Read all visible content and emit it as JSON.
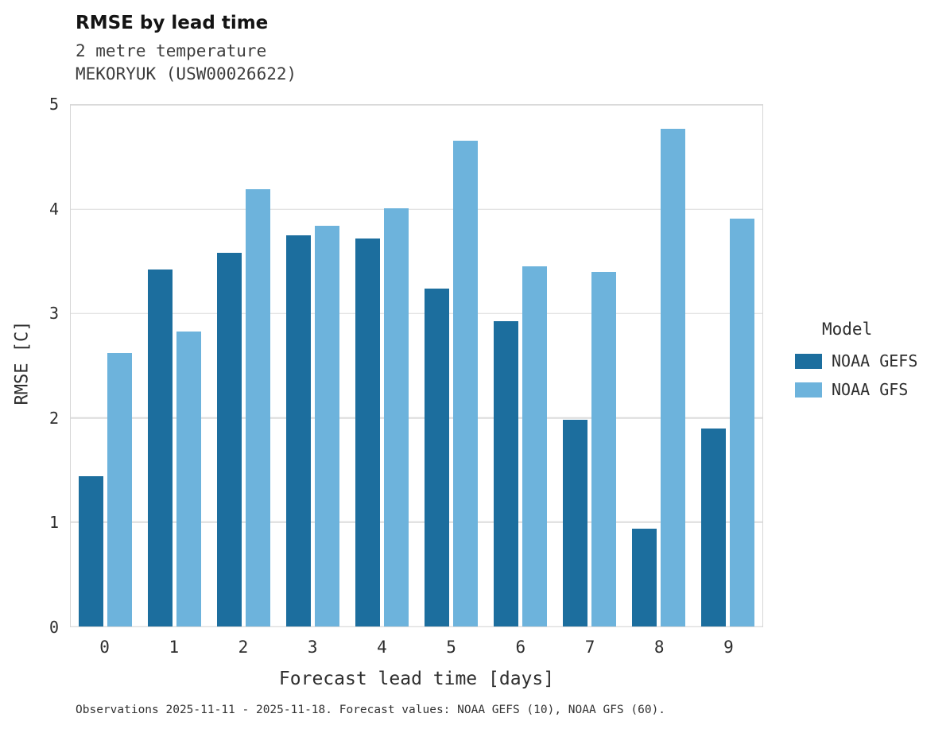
{
  "header": {
    "title": "RMSE by lead time",
    "subtitle_line1": "2 metre temperature",
    "subtitle_line2": "MEKORYUK (USW00026622)"
  },
  "chart_data": {
    "type": "bar",
    "title": "RMSE by lead time",
    "subtitle": "2 metre temperature",
    "station": "MEKORYUK (USW00026622)",
    "categories": [
      0,
      1,
      2,
      3,
      4,
      5,
      6,
      7,
      8,
      9
    ],
    "series": [
      {
        "name": "NOAA GEFS",
        "color": "#1c6e9e",
        "values": [
          1.44,
          3.42,
          3.58,
          3.75,
          3.72,
          3.24,
          2.93,
          1.98,
          0.94,
          1.9
        ]
      },
      {
        "name": "NOAA GFS",
        "color": "#6db3dc",
        "values": [
          2.62,
          2.83,
          4.19,
          3.84,
          4.01,
          4.66,
          3.45,
          3.4,
          4.77,
          3.91
        ]
      }
    ],
    "xlabel": "Forecast lead time [days]",
    "ylabel": "RMSE [C]",
    "ylim": [
      0,
      5
    ],
    "yticks": [
      0,
      1,
      2,
      3,
      4,
      5
    ],
    "grid": true,
    "legend_title": "Model",
    "legend_position": "right"
  },
  "caption": {
    "text": "Observations 2025-11-11 - 2025-11-18. Forecast values: NOAA GEFS (10), NOAA GFS (60)."
  }
}
